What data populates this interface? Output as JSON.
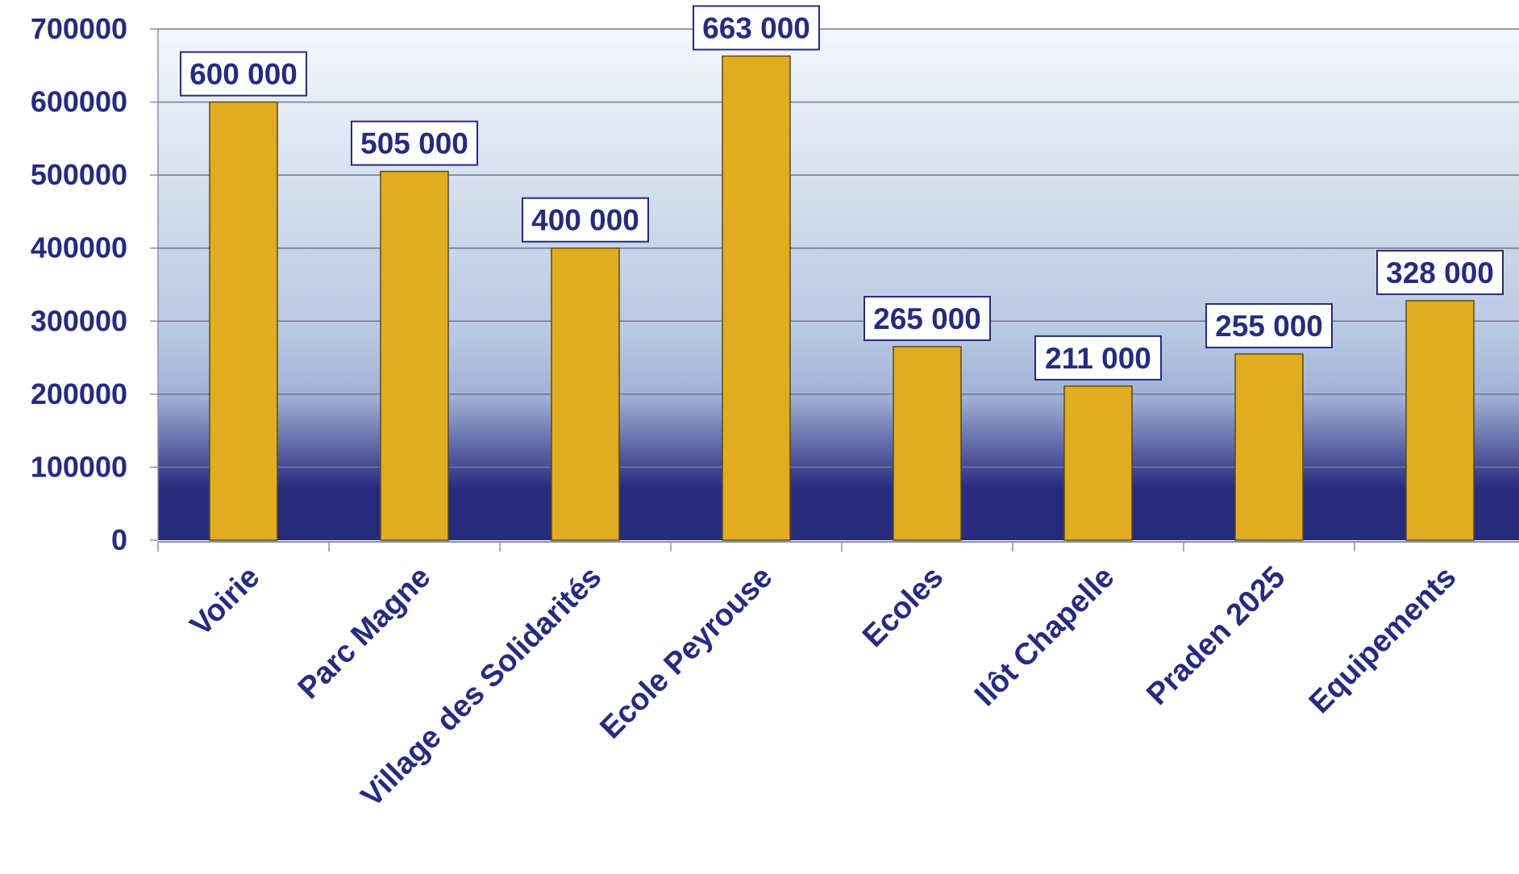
{
  "chart_data": {
    "type": "bar",
    "title": "",
    "xlabel": "",
    "ylabel": "",
    "categories": [
      "Voirie",
      "Parc Magne",
      "Village des Solidarités",
      "Ecole Peyrouse",
      "Ecoles",
      "Ilôt Chapelle",
      "Praden 2025",
      "Equipements"
    ],
    "values": [
      600000,
      505000,
      400000,
      663000,
      265000,
      211000,
      255000,
      328000
    ],
    "data_labels": [
      "600 000",
      "505 000",
      "400 000",
      "663 000",
      "265 000",
      "211 000",
      "255 000",
      "328 000"
    ],
    "ylim": [
      0,
      700000
    ],
    "yticks": [
      0,
      100000,
      200000,
      300000,
      400000,
      500000,
      600000,
      700000
    ],
    "ytick_labels": [
      "0",
      "100000",
      "200000",
      "300000",
      "400000",
      "500000",
      "600000",
      "700000"
    ],
    "grid": true,
    "legend": "none",
    "colors": {
      "bar_fill": "#E0AC22",
      "bar_stroke": "#5A4A1A",
      "text": "#262B7E",
      "gridline": "#6E7890",
      "plot_top": "#F4F7FB",
      "plot_mid": "#B7C8E2",
      "plot_bottom": "#262B7E",
      "label_box_fill": "#FFFFFF",
      "label_box_stroke": "#262B7E"
    }
  }
}
